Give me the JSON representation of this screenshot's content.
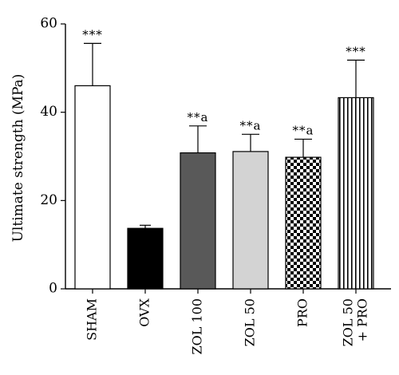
{
  "chart_data": {
    "type": "bar",
    "title": "",
    "xlabel": "",
    "ylabel": "Ultimate strength (MPa)",
    "ylim": [
      0,
      60
    ],
    "yticks": [
      0,
      20,
      40,
      60
    ],
    "categories": [
      "SHAM",
      "OVX",
      "ZOL 100",
      "ZOL 50",
      "PRO",
      "ZOL 50\n+ PRO"
    ],
    "category_lines": [
      [
        "SHAM"
      ],
      [
        "OVX"
      ],
      [
        "ZOL 100"
      ],
      [
        "ZOL 50"
      ],
      [
        "PRO"
      ],
      [
        "ZOL 50",
        "+ PRO"
      ]
    ],
    "values": [
      46.0,
      13.7,
      30.8,
      31.1,
      29.8,
      43.3
    ],
    "error_upper": [
      55.6,
      14.4,
      36.9,
      35.0,
      33.9,
      51.8
    ],
    "significance": [
      "***",
      "",
      "**a",
      "**a",
      "**a",
      "***"
    ],
    "fills": [
      "white",
      "black",
      "dark-gray",
      "light-gray",
      "checkerboard",
      "vertical-stripes"
    ],
    "colors": {
      "white": "#ffffff",
      "black": "#000000",
      "dark_gray": "#595959",
      "light_gray": "#d3d3d3",
      "pattern_dark": "#000000",
      "pattern_light": "#ffffff"
    },
    "grid": false,
    "legend": "none"
  }
}
